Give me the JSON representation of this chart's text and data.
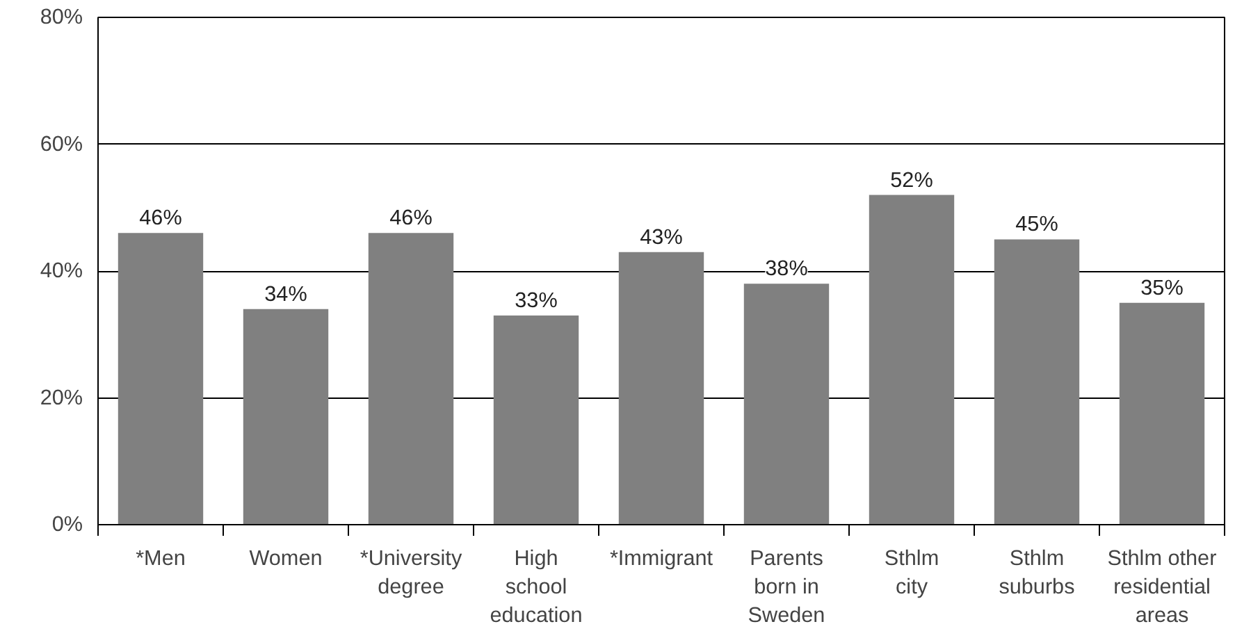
{
  "chart_data": {
    "type": "bar",
    "categories": [
      "*Men",
      "Women",
      "*University\ndegree",
      "High\nschool\neducation",
      "*Immigrant",
      "Parents\nborn in\nSweden",
      "Sthlm\ncity",
      "Sthlm\nsuburbs",
      "Sthlm other\nresidential\nareas"
    ],
    "values": [
      46,
      34,
      46,
      33,
      43,
      38,
      52,
      45,
      35
    ],
    "value_labels": [
      "46%",
      "34%",
      "46%",
      "33%",
      "43%",
      "38%",
      "52%",
      "45%",
      "35%"
    ],
    "color": "#808080",
    "ylim": [
      0,
      80
    ],
    "yticks": [
      {
        "value": 0,
        "label": "0%"
      },
      {
        "value": 20,
        "label": "20%"
      },
      {
        "value": 40,
        "label": "40%"
      },
      {
        "value": 60,
        "label": "60%"
      },
      {
        "value": 80,
        "label": "80%"
      }
    ],
    "grid": "y"
  }
}
